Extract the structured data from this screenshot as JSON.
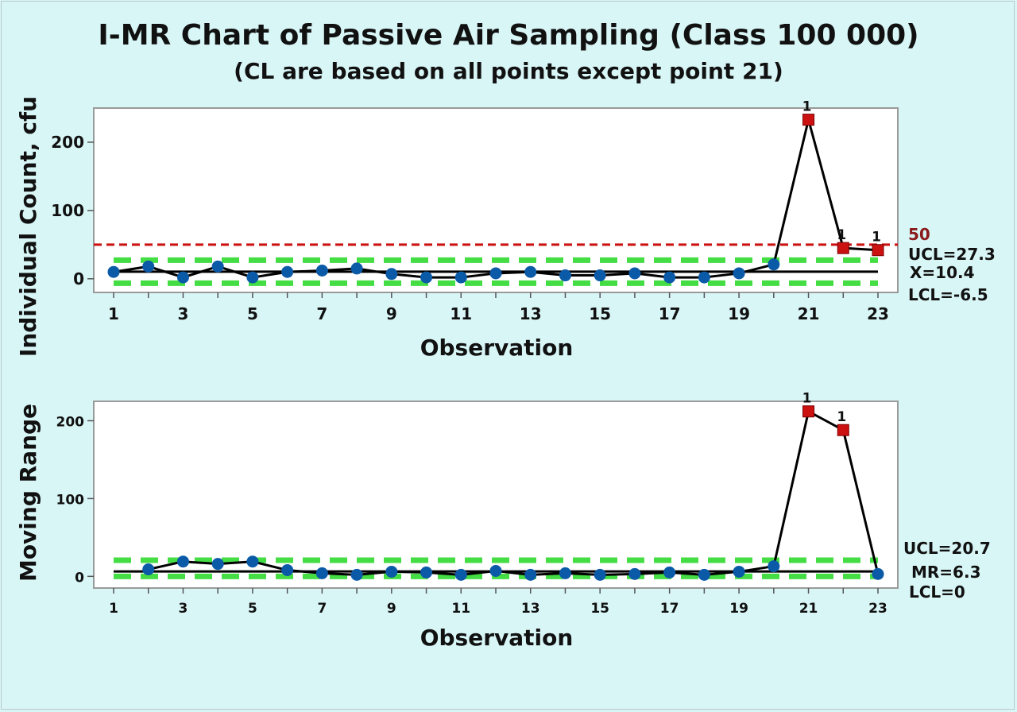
{
  "title": "I-MR Chart of Passive Air Sampling (Class 100 000)",
  "subtitle": "(CL are based on all points except point 21)",
  "colors": {
    "background": "#d9f6f7",
    "plot_bg": "#ffffff",
    "point": "#0b5aa8",
    "flagged_point": "#cc1111",
    "control_limit": "#44dd44",
    "spec_line": "#cc1111",
    "center_line": "#000000"
  },
  "chart_data": [
    {
      "type": "line",
      "name": "individuals",
      "ylabel": "Individual Count, cfu",
      "xlabel": "Observation",
      "x": [
        1,
        2,
        3,
        4,
        5,
        6,
        7,
        8,
        9,
        10,
        11,
        12,
        13,
        14,
        15,
        16,
        17,
        18,
        19,
        20,
        21,
        22,
        23
      ],
      "values": [
        10,
        18,
        2,
        18,
        2,
        10,
        12,
        15,
        7,
        2,
        2,
        8,
        10,
        5,
        5,
        8,
        2,
        2,
        8,
        21,
        233,
        45,
        42
      ],
      "flagged": [
        21,
        22,
        23
      ],
      "flag_label": "1",
      "xticks": [
        "1",
        "3",
        "5",
        "7",
        "9",
        "11",
        "13",
        "15",
        "17",
        "19",
        "21",
        "23"
      ],
      "yticks": [
        "0",
        "100",
        "200"
      ],
      "ylim": [
        -20,
        250
      ],
      "xlim": [
        1,
        23
      ],
      "center": 10.4,
      "ucl": 27.3,
      "lcl": -6.5,
      "spec_limit": 50,
      "labels": {
        "spec": "50",
        "ucl": "UCL=27.3",
        "center": "X=10.4",
        "lcl": "LCL=-6.5"
      }
    },
    {
      "type": "line",
      "name": "moving_range",
      "ylabel": "Moving Range",
      "xlabel": "Observation",
      "x": [
        2,
        3,
        4,
        5,
        6,
        7,
        8,
        9,
        10,
        11,
        12,
        13,
        14,
        15,
        16,
        17,
        18,
        19,
        20,
        21,
        22,
        23
      ],
      "values": [
        9,
        19,
        16,
        19,
        8,
        4,
        2,
        6,
        5,
        2,
        7,
        2,
        4,
        2,
        3,
        5,
        2,
        6,
        13,
        212,
        188,
        3
      ],
      "flagged": [
        21,
        22
      ],
      "flag_label": "1",
      "xticks": [
        "1",
        "3",
        "5",
        "7",
        "9",
        "11",
        "13",
        "15",
        "17",
        "19",
        "21",
        "23"
      ],
      "yticks": [
        "0",
        "100",
        "200"
      ],
      "ylim": [
        -15,
        225
      ],
      "xlim": [
        1,
        23
      ],
      "center": 6.3,
      "ucl": 20.7,
      "lcl": 0,
      "labels": {
        "ucl": "UCL=20.7",
        "center": "MR=6.3",
        "lcl": "LCL=0"
      }
    }
  ]
}
